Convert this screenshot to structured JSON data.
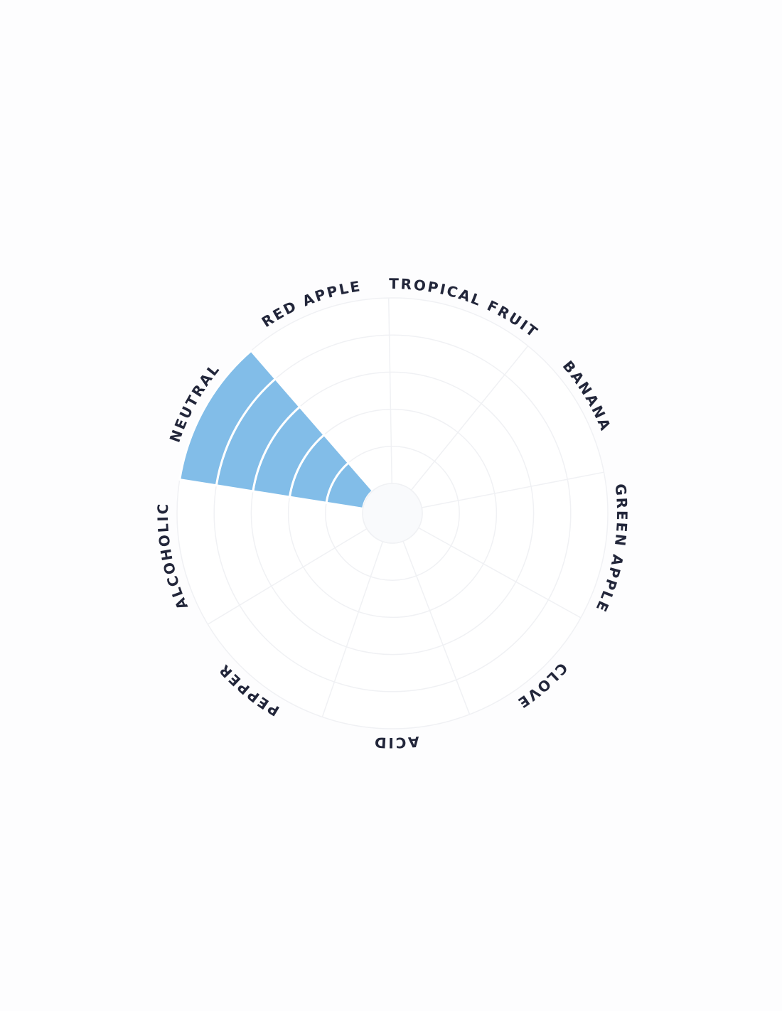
{
  "chart_data": {
    "type": "polar-bar",
    "categories": [
      "RED APPLE",
      "TROPICAL FRUIT",
      "BANANA",
      "GREEN APPLE",
      "CLOVE",
      "ACID",
      "PEPPER",
      "ALCOHOLIC",
      "NEUTRAL"
    ],
    "values": [
      0,
      0,
      0,
      0,
      0,
      0,
      0,
      0,
      5
    ],
    "color": "#82bde8",
    "ylim": [
      0,
      5
    ],
    "yticks": [
      0,
      1,
      2,
      3,
      4,
      5
    ],
    "grid": true
  }
}
